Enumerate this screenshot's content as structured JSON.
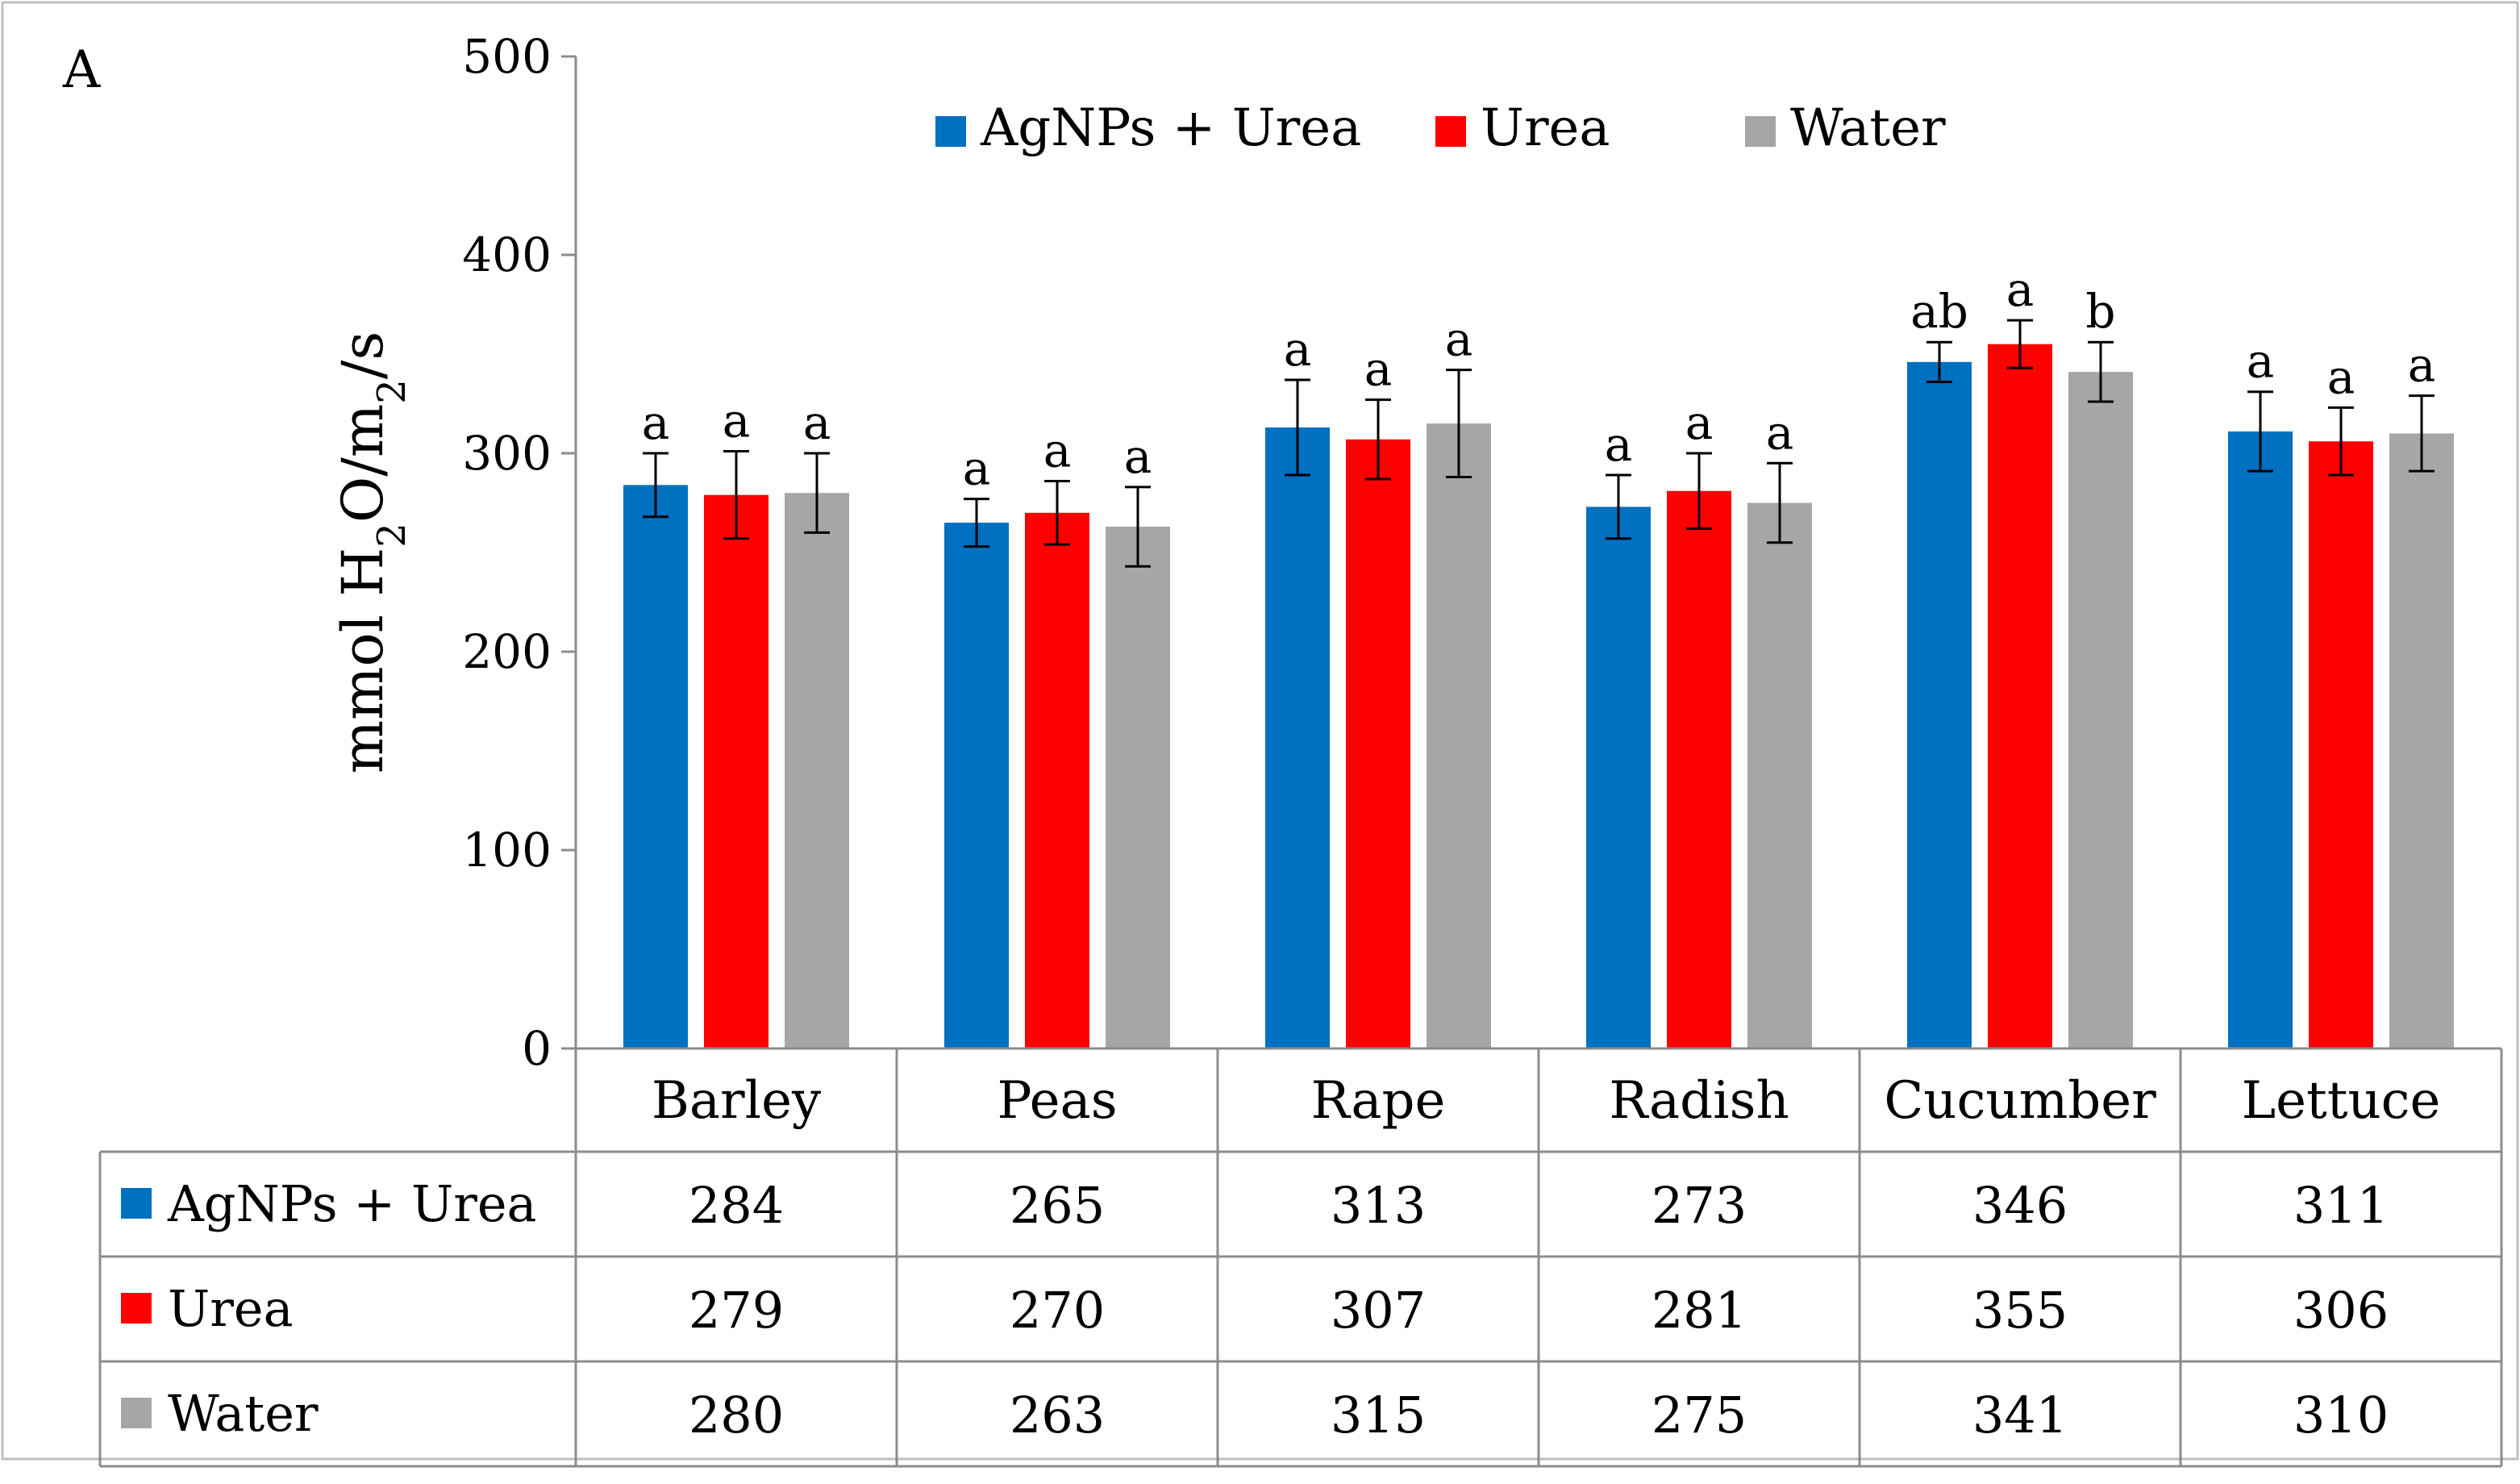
{
  "panel_label": "A",
  "chart_data": {
    "type": "bar",
    "title": "",
    "ylabel": "mmol H2O/m2/s",
    "ylabel_parts": {
      "prefix": "mmol H",
      "sub1": "2",
      "middle": "O/m",
      "sub2": "2",
      "suffix": "/s"
    },
    "xlabel": "",
    "ylim": [
      0,
      500
    ],
    "yticks": [
      0,
      100,
      200,
      300,
      400,
      500
    ],
    "grid": false,
    "legend_position": "top",
    "categories": [
      "Barley",
      "Peas",
      "Rape",
      "Radish",
      "Cucumber",
      "Lettuce"
    ],
    "series": [
      {
        "name": "AgNPs + Urea",
        "color": "#0070c0",
        "values": [
          284,
          265,
          313,
          273,
          346,
          311
        ],
        "errors": [
          16,
          12,
          24,
          16,
          10,
          20
        ],
        "letters": [
          "a",
          "a",
          "a",
          "a",
          "ab",
          "a"
        ]
      },
      {
        "name": "Urea",
        "color": "#ff0000",
        "values": [
          279,
          270,
          307,
          281,
          355,
          306
        ],
        "errors": [
          22,
          16,
          20,
          19,
          12,
          17
        ],
        "letters": [
          "a",
          "a",
          "a",
          "a",
          "a",
          "a"
        ]
      },
      {
        "name": "Water",
        "color": "#a6a6a6",
        "values": [
          280,
          263,
          315,
          275,
          341,
          310
        ],
        "errors": [
          20,
          20,
          27,
          20,
          15,
          19
        ],
        "letters": [
          "a",
          "a",
          "a",
          "a",
          "b",
          "a"
        ]
      }
    ],
    "table": {
      "rows": [
        {
          "name": "AgNPs + Urea",
          "values": [
            "284",
            "265",
            "313",
            "273",
            "346",
            "311"
          ]
        },
        {
          "name": "Urea",
          "values": [
            "279",
            "270",
            "307",
            "281",
            "355",
            "306"
          ]
        },
        {
          "name": "Water",
          "values": [
            "280",
            "263",
            "315",
            "275",
            "341",
            "310"
          ]
        }
      ]
    }
  }
}
